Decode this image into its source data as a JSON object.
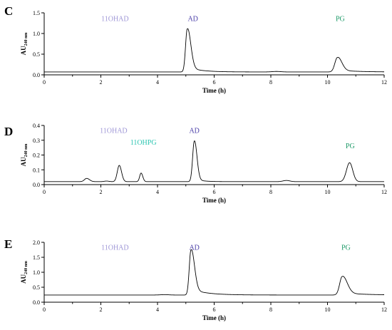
{
  "chart_data": [
    {
      "type": "line",
      "panel": "C",
      "xlabel": "Time (h)",
      "ylabel_main": "AU",
      "ylabel_sub": "240 nm",
      "xlim": [
        0,
        12
      ],
      "ylim": [
        0,
        1.5
      ],
      "xticks": [
        0,
        2,
        4,
        6,
        8,
        10,
        12
      ],
      "yticks": [
        "0.0",
        "0.5",
        "1.0",
        "1.5"
      ],
      "ytick_values": [
        0,
        0.5,
        1.0,
        1.5
      ],
      "baseline": 0.07,
      "peaks": [
        {
          "x": 5.05,
          "height": 1.04,
          "width_left": 0.06,
          "width_right": 0.12,
          "tail": 0.12,
          "tail_len": 0.45
        },
        {
          "x": 8.2,
          "height": 0.012,
          "width_left": 0.15,
          "width_right": 0.15,
          "tail": 0,
          "tail_len": 0.1
        },
        {
          "x": 10.35,
          "height": 0.35,
          "width_left": 0.09,
          "width_right": 0.15,
          "tail": 0.05,
          "tail_len": 0.6
        }
      ],
      "annotations": [
        {
          "text": "11OHAD",
          "x": 2.5,
          "y": 1.3,
          "color": "#9E96D6"
        },
        {
          "text": "AD",
          "x": 5.25,
          "y": 1.3,
          "color": "#4B3FA8"
        },
        {
          "text": "PG",
          "x": 10.45,
          "y": 1.3,
          "color": "#1E9A68"
        }
      ]
    },
    {
      "type": "line",
      "panel": "D",
      "xlabel": "Time (h)",
      "ylabel_main": "AU",
      "ylabel_sub": "240 nm",
      "xlim": [
        0,
        12
      ],
      "ylim": [
        0,
        0.4
      ],
      "xticks": [
        0,
        2,
        4,
        6,
        8,
        10,
        12
      ],
      "yticks": [
        "0.0",
        "0.1",
        "0.2",
        "0.3",
        "0.4"
      ],
      "ytick_values": [
        0,
        0.1,
        0.2,
        0.3,
        0.4
      ],
      "baseline": 0.02,
      "peaks": [
        {
          "x": 1.5,
          "height": 0.022,
          "width_left": 0.08,
          "width_right": 0.1,
          "tail": 0,
          "tail_len": 0.1
        },
        {
          "x": 2.2,
          "height": 0.004,
          "width_left": 0.08,
          "width_right": 0.08,
          "tail": 0,
          "tail_len": 0.1
        },
        {
          "x": 2.65,
          "height": 0.11,
          "width_left": 0.07,
          "width_right": 0.08,
          "tail": 0,
          "tail_len": 0.1
        },
        {
          "x": 3.42,
          "height": 0.058,
          "width_left": 0.05,
          "width_right": 0.06,
          "tail": 0,
          "tail_len": 0.1
        },
        {
          "x": 5.3,
          "height": 0.275,
          "width_left": 0.06,
          "width_right": 0.09,
          "tail": 0.02,
          "tail_len": 0.25
        },
        {
          "x": 8.55,
          "height": 0.008,
          "width_left": 0.12,
          "width_right": 0.12,
          "tail": 0,
          "tail_len": 0.1
        },
        {
          "x": 10.78,
          "height": 0.128,
          "width_left": 0.11,
          "width_right": 0.11,
          "tail": 0,
          "tail_len": 0.1
        }
      ],
      "annotations": [
        {
          "text": "11OHAD",
          "x": 2.45,
          "y": 0.35,
          "color": "#9E96D6"
        },
        {
          "text": "11OHPG",
          "x": 3.5,
          "y": 0.27,
          "color": "#29C4B0"
        },
        {
          "text": "AD",
          "x": 5.3,
          "y": 0.35,
          "color": "#4B3FA8"
        },
        {
          "text": "PG",
          "x": 10.8,
          "y": 0.245,
          "color": "#1E9A68"
        }
      ]
    },
    {
      "type": "line",
      "panel": "E",
      "xlabel": "Time (h)",
      "ylabel_main": "AU",
      "ylabel_sub": "240 nm",
      "xlim": [
        0,
        12
      ],
      "ylim": [
        0,
        2.0
      ],
      "xticks": [
        0,
        2,
        4,
        6,
        8,
        10,
        12
      ],
      "yticks": [
        "0.0",
        "0.5",
        "1.0",
        "1.5",
        "2.0"
      ],
      "ytick_values": [
        0,
        0.5,
        1.0,
        1.5,
        2.0
      ],
      "baseline": 0.24,
      "peaks": [
        {
          "x": 4.25,
          "height": 0.012,
          "width_left": 0.15,
          "width_right": 0.15,
          "tail": 0,
          "tail_len": 0.1
        },
        {
          "x": 5.18,
          "height": 1.5,
          "width_left": 0.06,
          "width_right": 0.12,
          "tail": 0.2,
          "tail_len": 0.55
        },
        {
          "x": 10.52,
          "height": 0.62,
          "width_left": 0.09,
          "width_right": 0.17,
          "tail": 0.08,
          "tail_len": 0.7
        }
      ],
      "annotations": [
        {
          "text": "11OHAD",
          "x": 2.5,
          "y": 1.75,
          "color": "#9E96D6"
        },
        {
          "text": "AD",
          "x": 5.3,
          "y": 1.75,
          "color": "#4B3FA8"
        },
        {
          "text": "PG",
          "x": 10.65,
          "y": 1.75,
          "color": "#1E9A68"
        }
      ]
    }
  ]
}
